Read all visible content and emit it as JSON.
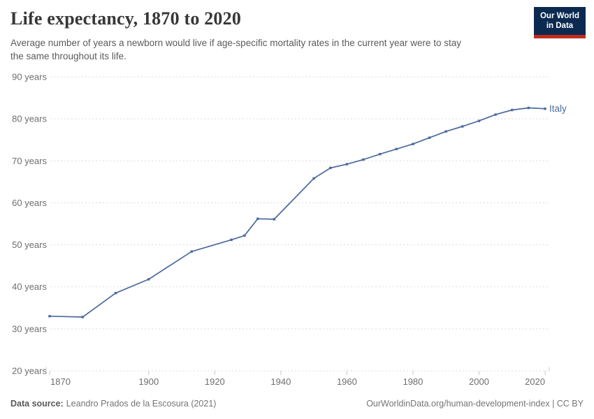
{
  "header": {
    "title": "Life expectancy, 1870 to 2020",
    "subtitle": "Average number of years a newborn would live if age-specific mortality rates in the current year were to stay\nthe same throughout its life.",
    "logo": {
      "line1": "Our World",
      "line2": "in Data"
    }
  },
  "chart_data": {
    "type": "line",
    "title": "Life expectancy, 1870 to 2020",
    "xlabel": "",
    "ylabel": "",
    "xlim": [
      1870,
      2020
    ],
    "ylim": [
      20,
      90
    ],
    "x_ticks": [
      1870,
      1900,
      1920,
      1940,
      1960,
      1980,
      2000,
      2020
    ],
    "y_ticks": [
      20,
      30,
      40,
      50,
      60,
      70,
      80,
      90
    ],
    "y_tick_suffix": " years",
    "grid": true,
    "legend_position": "line-end-label",
    "series": [
      {
        "name": "Italy",
        "color": "#4C6A9C",
        "points": [
          [
            1870,
            33.0
          ],
          [
            1880,
            32.8
          ],
          [
            1890,
            38.5
          ],
          [
            1900,
            41.8
          ],
          [
            1913,
            48.4
          ],
          [
            1925,
            51.2
          ],
          [
            1929,
            52.2
          ],
          [
            1933,
            56.2
          ],
          [
            1938,
            56.1
          ],
          [
            1950,
            65.8
          ],
          [
            1955,
            68.3
          ],
          [
            1960,
            69.2
          ],
          [
            1965,
            70.3
          ],
          [
            1970,
            71.6
          ],
          [
            1975,
            72.8
          ],
          [
            1980,
            74.0
          ],
          [
            1985,
            75.5
          ],
          [
            1990,
            77.0
          ],
          [
            1995,
            78.2
          ],
          [
            2000,
            79.5
          ],
          [
            2005,
            81.0
          ],
          [
            2010,
            82.1
          ],
          [
            2015,
            82.6
          ],
          [
            2020,
            82.4
          ]
        ]
      }
    ]
  },
  "footer": {
    "source_label": "Data source:",
    "source_text": "Leandro Prados de la Escosura (2021)",
    "note_text": "OurWorldinData.org/human-development-index | CC BY"
  },
  "colors": {
    "line": "#4C6A9C",
    "title_text": "#373737",
    "subtitle_text": "#5b5b5b",
    "axis_text": "#6e6e6e",
    "gridline": "#dcdcdc",
    "tick": "#c8c8c8",
    "footer_text": "#757575",
    "logo_navy": "#0c2a50",
    "logo_red": "#c22d1d"
  }
}
